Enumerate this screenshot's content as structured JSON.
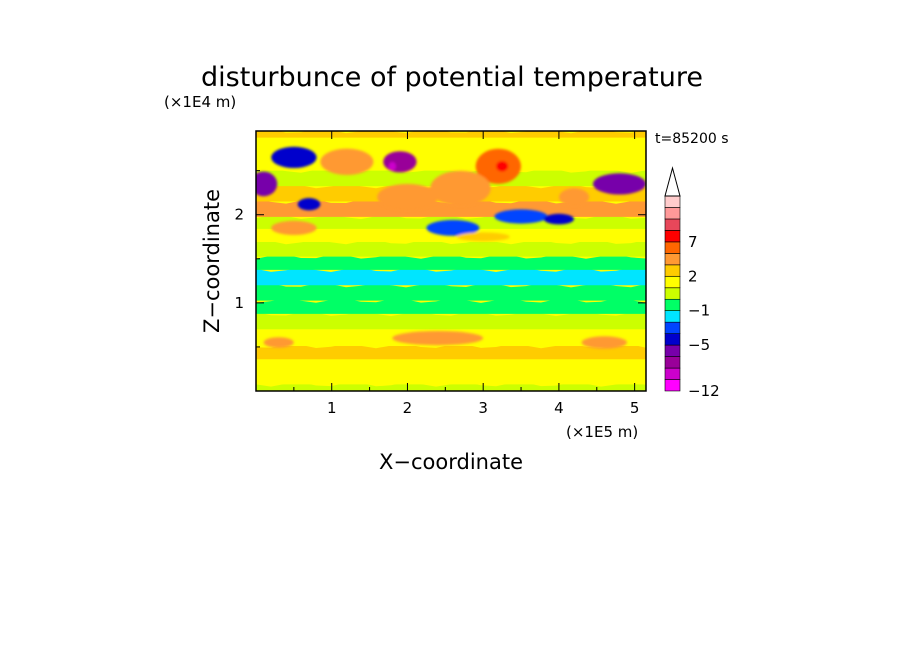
{
  "chart_data": {
    "type": "heatmap",
    "title": "disturbunce of potential temperature",
    "xlabel": "X−coordinate",
    "ylabel": "Z−coordinate",
    "x_unit": "(×1E5 m)",
    "y_unit": "(×1E4 m)",
    "time_label": "t=85200 s",
    "xlim": [
      0,
      5.15
    ],
    "ylim": [
      0,
      2.95
    ],
    "x_ticks": [
      1,
      2,
      3,
      4,
      5
    ],
    "y_ticks": [
      1,
      2
    ],
    "x_tick_labels": [
      "1",
      "2",
      "3",
      "4",
      "5"
    ],
    "y_tick_labels": [
      "1",
      "2"
    ],
    "colorbar": {
      "levels_colors": [
        "#ff00ff",
        "#cc00cc",
        "#990099",
        "#7700aa",
        "#0000cc",
        "#0044ff",
        "#00e5ff",
        "#00ff66",
        "#ccff00",
        "#ffff00",
        "#ffcc00",
        "#ff9933",
        "#ff6600",
        "#ff0000",
        "#e8475a",
        "#ff9999",
        "#ffcccc"
      ],
      "tick_labels": [
        "−12",
        "−5",
        "−1",
        "2",
        "7"
      ],
      "tick_values": [
        -12,
        -5,
        -1,
        2,
        7
      ]
    },
    "bands": [
      {
        "z": 0.03,
        "value": 0.0
      },
      {
        "z": 0.12,
        "value": 1.5
      },
      {
        "z": 0.3,
        "value": 1.0
      },
      {
        "z": 0.42,
        "value": 2.0
      },
      {
        "z": 0.6,
        "value": 1.0
      },
      {
        "z": 0.8,
        "value": 0.5
      },
      {
        "z": 0.95,
        "value": -0.5
      },
      {
        "z": 1.1,
        "value": -0.5
      },
      {
        "z": 1.3,
        "value": -1.5
      },
      {
        "z": 1.45,
        "value": -0.3
      },
      {
        "z": 1.6,
        "value": 0.8
      },
      {
        "z": 1.78,
        "value": 1.3
      },
      {
        "z": 1.9,
        "value": 0.5
      },
      {
        "z": 2.05,
        "value": 3.5
      },
      {
        "z": 2.25,
        "value": 2.0
      },
      {
        "z": 2.4,
        "value": 0.5
      },
      {
        "z": 2.6,
        "value": 1.5
      },
      {
        "z": 2.8,
        "value": 1.0
      },
      {
        "z": 2.95,
        "value": 2.0
      }
    ],
    "blobs": [
      {
        "x": 0.1,
        "z": 2.35,
        "rx": 0.18,
        "rz": 0.14,
        "value": -6
      },
      {
        "x": 0.5,
        "z": 2.65,
        "rx": 0.3,
        "rz": 0.12,
        "value": -5
      },
      {
        "x": 0.7,
        "z": 2.12,
        "rx": 0.15,
        "rz": 0.07,
        "value": -5
      },
      {
        "x": 1.9,
        "z": 2.6,
        "rx": 0.22,
        "rz": 0.12,
        "value": -7
      },
      {
        "x": 1.8,
        "z": 2.55,
        "rx": 0.05,
        "rz": 0.05,
        "value": -10
      },
      {
        "x": 4.8,
        "z": 2.35,
        "rx": 0.35,
        "rz": 0.12,
        "value": -6
      },
      {
        "x": 2.6,
        "z": 1.85,
        "rx": 0.35,
        "rz": 0.09,
        "value": -4
      },
      {
        "x": 3.5,
        "z": 1.98,
        "rx": 0.35,
        "rz": 0.08,
        "value": -3
      },
      {
        "x": 4.0,
        "z": 1.95,
        "rx": 0.2,
        "rz": 0.06,
        "value": -5
      },
      {
        "x": 3.2,
        "z": 2.55,
        "rx": 0.3,
        "rz": 0.2,
        "value": 5
      },
      {
        "x": 3.25,
        "z": 2.55,
        "rx": 0.08,
        "rz": 0.06,
        "value": 7.5
      },
      {
        "x": 2.0,
        "z": 2.2,
        "rx": 0.4,
        "rz": 0.15,
        "value": 4
      },
      {
        "x": 2.7,
        "z": 2.3,
        "rx": 0.4,
        "rz": 0.2,
        "value": 4
      },
      {
        "x": 0.5,
        "z": 1.85,
        "rx": 0.3,
        "rz": 0.08,
        "value": 3.5
      },
      {
        "x": 2.4,
        "z": 0.6,
        "rx": 0.6,
        "rz": 0.08,
        "value": 3
      },
      {
        "x": 0.3,
        "z": 0.55,
        "rx": 0.2,
        "rz": 0.06,
        "value": 3
      },
      {
        "x": 4.6,
        "z": 0.55,
        "rx": 0.3,
        "rz": 0.07,
        "value": 3
      },
      {
        "x": 4.2,
        "z": 2.2,
        "rx": 0.2,
        "rz": 0.1,
        "value": 4
      },
      {
        "x": 1.2,
        "z": 2.6,
        "rx": 0.35,
        "rz": 0.15,
        "value": 4
      },
      {
        "x": 3.0,
        "z": 1.75,
        "rx": 0.35,
        "rz": 0.05,
        "value": 2.5
      }
    ]
  }
}
